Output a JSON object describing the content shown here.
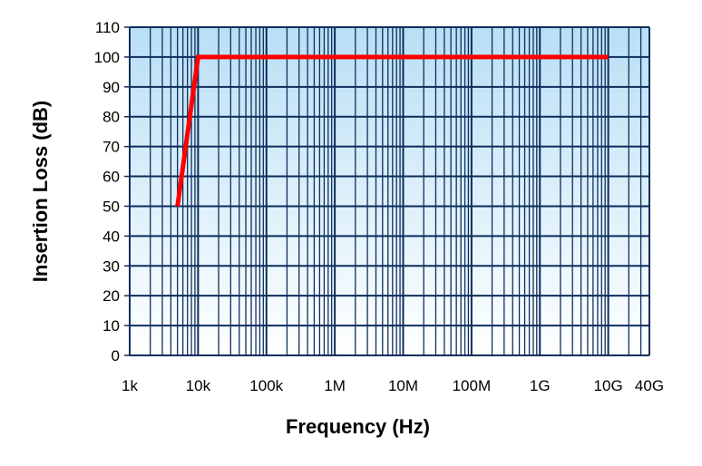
{
  "chart_data": {
    "type": "line",
    "xlabel": "Frequency (Hz)",
    "ylabel": "Insertion Loss (dB)",
    "xscale": "log",
    "xlim": [
      1000,
      40000000000
    ],
    "ylim": [
      0,
      110
    ],
    "grid": true,
    "x_ticks": [
      {
        "value": 1000,
        "label": "1k"
      },
      {
        "value": 10000,
        "label": "10k"
      },
      {
        "value": 100000,
        "label": "100k"
      },
      {
        "value": 1000000,
        "label": "1M"
      },
      {
        "value": 10000000,
        "label": "10M"
      },
      {
        "value": 100000000,
        "label": "100M"
      },
      {
        "value": 1000000000,
        "label": "1G"
      },
      {
        "value": 10000000000,
        "label": "10G"
      },
      {
        "value": 40000000000,
        "label": "40G"
      }
    ],
    "y_ticks": [
      0,
      10,
      20,
      30,
      40,
      50,
      60,
      70,
      80,
      90,
      100,
      110
    ],
    "series": [
      {
        "color": "#ff0000",
        "x": [
          5000,
          10000,
          10000000000
        ],
        "y": [
          50,
          100,
          100
        ]
      }
    ],
    "plot_background": {
      "top": "#b9dff5",
      "bottom": "#ffffff"
    },
    "grid_color": "#0d2e5c"
  }
}
